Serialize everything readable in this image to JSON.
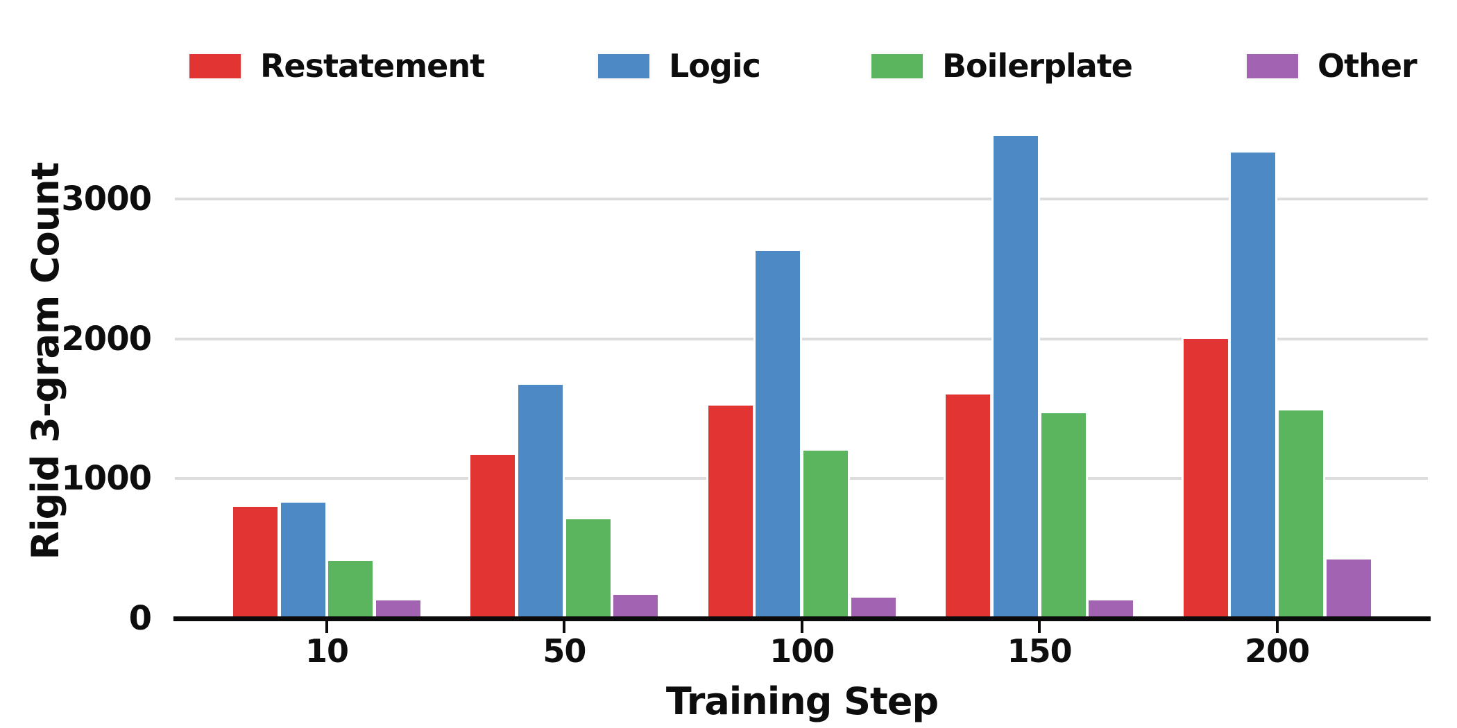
{
  "chart_data": {
    "type": "bar",
    "categories": [
      "10",
      "50",
      "100",
      "150",
      "200"
    ],
    "series": [
      {
        "name": "Restatement",
        "color": "#e23433",
        "values": [
          800,
          1170,
          1520,
          1600,
          2000
        ]
      },
      {
        "name": "Logic",
        "color": "#4d8ac5",
        "values": [
          830,
          1670,
          2630,
          3450,
          3330
        ]
      },
      {
        "name": "Boilerplate",
        "color": "#5ab55e",
        "values": [
          410,
          710,
          1200,
          1470,
          1490
        ]
      },
      {
        "name": "Other",
        "color": "#a263b2",
        "values": [
          130,
          170,
          150,
          130,
          420
        ]
      }
    ],
    "title": "",
    "xlabel": "Training Step",
    "ylabel": "Rigid 3-gram Count",
    "yticks": [
      0,
      1000,
      2000,
      3000
    ],
    "ylim": [
      0,
      3600
    ],
    "legend_position": "top",
    "grid": "horizontal"
  },
  "colors": {
    "gridline": "#dcdcdc",
    "axis": "#0a0a0a",
    "text": "#0d0d0d",
    "background": "#ffffff"
  }
}
